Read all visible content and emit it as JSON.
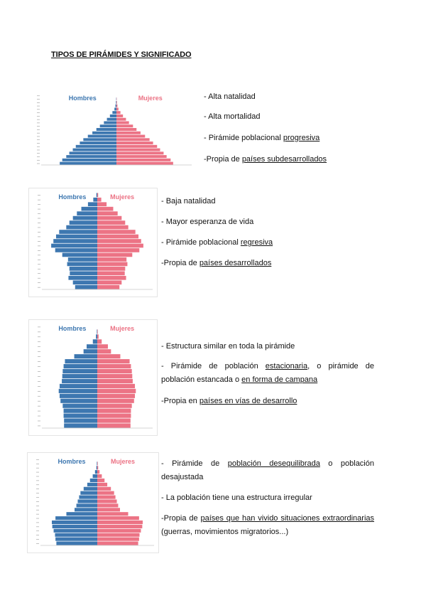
{
  "title": "TIPOS DE PIRÁMIDES Y SIGNIFICADO",
  "colors": {
    "hombres": "#3d77b0",
    "mujeres": "#ec7385"
  },
  "pyramids": [
    {
      "label_left": "Hombres",
      "label_right": "Mujeres",
      "max": 15,
      "values": [
        11.3,
        10.8,
        10.0,
        9.4,
        8.7,
        8.1,
        7.3,
        6.6,
        5.7,
        4.8,
        4.0,
        3.3,
        2.5,
        1.9,
        1.3,
        0.8,
        0.4,
        0.2,
        0.1,
        0.05,
        0.0
      ]
    },
    {
      "label_left": "Hombres",
      "label_right": "Mujeres",
      "max": 12.5,
      "values": [
        5.0,
        5.5,
        6.5,
        6.2,
        6.3,
        6.8,
        6.6,
        7.9,
        9.5,
        10.4,
        9.9,
        9.3,
        8.6,
        7.0,
        6.3,
        5.5,
        4.6,
        3.6,
        2.1,
        0.9,
        0.2
      ]
    },
    {
      "label_left": "Hombres",
      "label_right": "Mujeres",
      "max": 12.5,
      "values": [
        7.5,
        7.5,
        7.6,
        7.6,
        7.8,
        8.3,
        8.5,
        8.7,
        8.5,
        8.0,
        7.9,
        7.8,
        7.6,
        7.3,
        5.2,
        3.1,
        2.4,
        1.0,
        0.3,
        0.1,
        0.0
      ]
    },
    {
      "label_left": "Hombres",
      "label_right": "Mujeres",
      "max": 12.5,
      "values": [
        9.0,
        9.2,
        9.3,
        9.6,
        9.9,
        10.0,
        9.2,
        6.8,
        5.0,
        4.6,
        4.3,
        4.0,
        3.7,
        3.0,
        2.2,
        1.6,
        1.0,
        0.5,
        0.2,
        0.1,
        0.0
      ]
    }
  ],
  "sections": [
    {
      "lines": [
        {
          "text": "- Alta natalidad"
        },
        {
          "text": "- Alta mortalidad"
        },
        {
          "pre": "- Pirámide poblacional ",
          "u": "progresiva"
        },
        {
          "pre": "-Propia de ",
          "u": "países subdesarrollados"
        }
      ]
    },
    {
      "lines": [
        {
          "text": "- Baja natalidad"
        },
        {
          "text": "- Mayor esperanza de vida"
        },
        {
          "pre": "- Pirámide poblacional ",
          "u": "regresiva"
        },
        {
          "pre": "-Propia de ",
          "u": "países desarrollados"
        }
      ]
    },
    {
      "lines": [
        {
          "text": "- Estructura similar en toda la pirámide"
        },
        {
          "pre": "- Pirámide de población ",
          "u": "estacionaria",
          "mid": ", o pirámide de población estancada o ",
          "u2": "en forma de campana"
        },
        {
          "pre": "-Propia en ",
          "u": "países en vías de desarrollo"
        }
      ]
    },
    {
      "lines": [
        {
          "pre": "- Pirámide de ",
          "u": "población desequilibrada",
          "post": " o población desajustada"
        },
        {
          "text": "- La población tiene una estructura irregular"
        },
        {
          "pre": "-Propia de ",
          "u": "países que han vivido situaciones extraordinarias",
          "post": " (guerras, movimientos migratorios...)"
        }
      ]
    }
  ]
}
